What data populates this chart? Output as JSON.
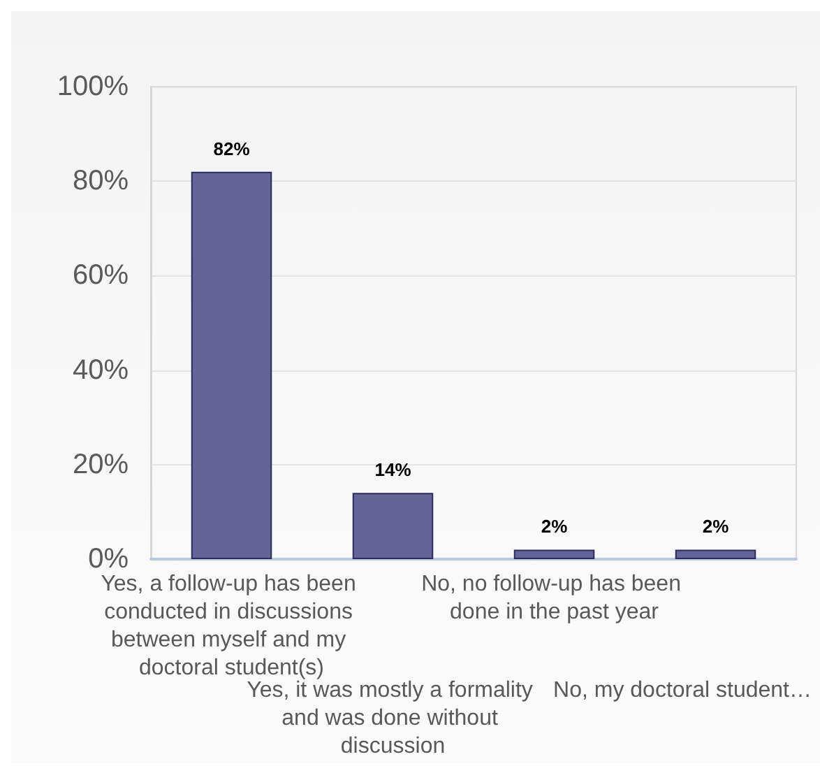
{
  "chart_data": {
    "type": "bar",
    "categories": [
      "Yes, a follow-up has been conducted in discussions between myself and my doctoral student(s)",
      "Yes, it was mostly a formality and was done without discussion",
      "No, no follow-up has been done in the past year",
      "No, my doctoral student…"
    ],
    "values": [
      82,
      14,
      2,
      2
    ],
    "color": "#646496",
    "value_labels": [
      "82%",
      "14%",
      "2%",
      "2%"
    ],
    "ylim": [
      0,
      100
    ],
    "yticks": [
      {
        "value": 0,
        "label": "0%"
      },
      {
        "value": 20,
        "label": "20%"
      },
      {
        "value": 40,
        "label": "40%"
      },
      {
        "value": 60,
        "label": "60%"
      },
      {
        "value": 80,
        "label": "80%"
      },
      {
        "value": 100,
        "label": "100%"
      }
    ],
    "grid": "y"
  }
}
